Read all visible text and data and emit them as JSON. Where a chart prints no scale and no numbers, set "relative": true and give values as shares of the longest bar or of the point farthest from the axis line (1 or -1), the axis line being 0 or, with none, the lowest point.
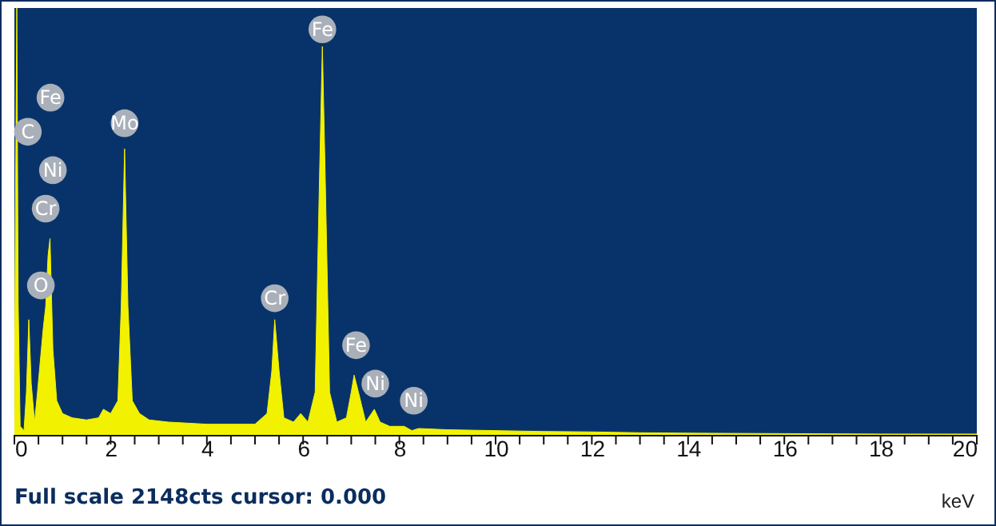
{
  "chart_data": {
    "type": "area",
    "xlabel": "keV",
    "relative": true,
    "tick_labels": "x",
    "grid": false,
    "x": [
      0,
      0.02,
      0.05,
      0.08,
      0.12,
      0.2,
      0.25,
      0.3,
      0.35,
      0.42,
      0.48,
      0.52,
      0.56,
      0.6,
      0.65,
      0.7,
      0.74,
      0.8,
      0.88,
      1.0,
      1.2,
      1.5,
      1.75,
      1.85,
      2.0,
      2.15,
      2.22,
      2.29,
      2.36,
      2.45,
      2.6,
      2.8,
      3.2,
      4,
      5,
      5.25,
      5.35,
      5.41,
      5.5,
      5.6,
      5.8,
      5.95,
      6.1,
      6.25,
      6.34,
      6.4,
      6.46,
      6.55,
      6.7,
      6.9,
      7.0,
      7.06,
      7.15,
      7.3,
      7.42,
      7.48,
      7.6,
      7.8,
      8.1,
      8.26,
      8.4,
      9,
      10,
      11,
      12,
      13,
      14,
      16,
      18,
      20
    ],
    "series": [
      {
        "color": "#f2f200",
        "values": [
          0,
          0.5,
          1,
          0.3,
          0.02,
          0.01,
          0.1,
          0.27,
          0.12,
          0.03,
          0.1,
          0.15,
          0.2,
          0.25,
          0.3,
          0.42,
          0.46,
          0.2,
          0.08,
          0.05,
          0.04,
          0.035,
          0.04,
          0.06,
          0.05,
          0.08,
          0.3,
          0.67,
          0.3,
          0.08,
          0.05,
          0.035,
          0.03,
          0.025,
          0.025,
          0.05,
          0.15,
          0.27,
          0.15,
          0.04,
          0.03,
          0.05,
          0.03,
          0.1,
          0.6,
          0.91,
          0.6,
          0.1,
          0.03,
          0.04,
          0.1,
          0.14,
          0.1,
          0.03,
          0.05,
          0.06,
          0.03,
          0.02,
          0.02,
          0.01,
          0.015,
          0.012,
          0.01,
          0.008,
          0.007,
          0.005,
          0.004,
          0.003,
          0.002,
          0.002
        ]
      }
    ],
    "xlim": [
      0,
      20
    ],
    "xticks": [
      0,
      {
        "value": 0.5,
        "label": null
      },
      {
        "value": 1,
        "label": null
      },
      {
        "value": 1.5,
        "label": null
      },
      2,
      {
        "value": 2.5,
        "label": null
      },
      {
        "value": 3,
        "label": null
      },
      {
        "value": 3.5,
        "label": null
      },
      4,
      {
        "value": 4.5,
        "label": null
      },
      {
        "value": 5,
        "label": null
      },
      {
        "value": 5.5,
        "label": null
      },
      6,
      {
        "value": 6.5,
        "label": null
      },
      {
        "value": 7,
        "label": null
      },
      {
        "value": 7.5,
        "label": null
      },
      8,
      {
        "value": 8.5,
        "label": null
      },
      {
        "value": 9,
        "label": null
      },
      {
        "value": 9.5,
        "label": null
      },
      10,
      {
        "value": 10.5,
        "label": null
      },
      {
        "value": 11,
        "label": null
      },
      {
        "value": 11.5,
        "label": null
      },
      12,
      {
        "value": 12.5,
        "label": null
      },
      {
        "value": 13,
        "label": null
      },
      {
        "value": 13.5,
        "label": null
      },
      14,
      {
        "value": 14.5,
        "label": null
      },
      {
        "value": 15,
        "label": null
      },
      {
        "value": 15.5,
        "label": null
      },
      16,
      {
        "value": 16.5,
        "label": null
      },
      {
        "value": 17,
        "label": null
      },
      {
        "value": 17.5,
        "label": null
      },
      18,
      {
        "value": 18.5,
        "label": null
      },
      {
        "value": 19,
        "label": null
      },
      {
        "value": 19.5,
        "label": null
      },
      20
    ],
    "annotations": [
      {
        "text": "C",
        "x": 0.28,
        "y": 0.71
      },
      {
        "text": "Fe",
        "x": 0.75,
        "y": 0.79
      },
      {
        "text": "Ni",
        "x": 0.8,
        "y": 0.62
      },
      {
        "text": "Cr",
        "x": 0.65,
        "y": 0.53
      },
      {
        "text": "O",
        "x": 0.55,
        "y": 0.35
      },
      {
        "text": "Mo",
        "x": 2.29,
        "y": 0.73
      },
      {
        "text": "Fe",
        "x": 6.4,
        "y": 0.95
      },
      {
        "text": "Cr",
        "x": 5.41,
        "y": 0.32
      },
      {
        "text": "Fe",
        "x": 7.1,
        "y": 0.21
      },
      {
        "text": "Ni",
        "x": 7.5,
        "y": 0.12
      },
      {
        "text": "Ni",
        "x": 8.3,
        "y": 0.08
      },
      "Full scale 2148cts cursor: 0.000"
    ]
  }
}
